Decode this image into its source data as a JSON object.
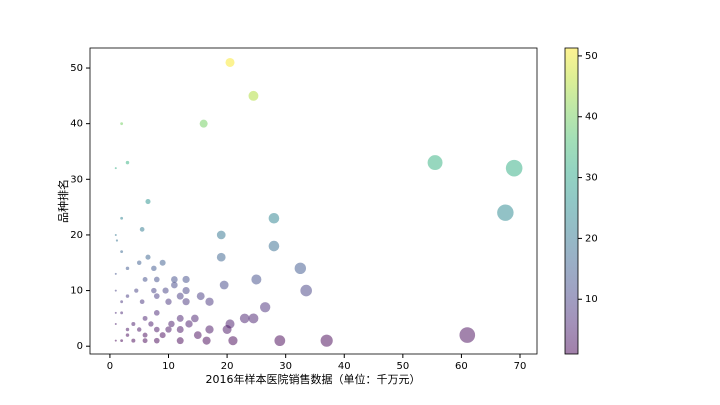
{
  "chart_data": {
    "type": "scatter",
    "xlabel": "2016年样本医院销售数据（单位：千万元）",
    "ylabel": "品种排名",
    "x": [
      20.5,
      24.5,
      16,
      2,
      3,
      55.5,
      69,
      1,
      6.5,
      67.5,
      28,
      2,
      5.5,
      19,
      1,
      1.2,
      28,
      2,
      19,
      6.5,
      5,
      9,
      7.5,
      32.5,
      3,
      25,
      11,
      13,
      8,
      6,
      19.5,
      11,
      33.5,
      7.5,
      9.5,
      13,
      4.5,
      1,
      15.5,
      12,
      8,
      3,
      26.5,
      10,
      13,
      5.5,
      17,
      2,
      23,
      24.5,
      12,
      14.5,
      6,
      8,
      20.5,
      10.5,
      13.5,
      7,
      4,
      17,
      20,
      10,
      12,
      8,
      5,
      3,
      61,
      15,
      9,
      6,
      3,
      37,
      29,
      21,
      16.5,
      12,
      8,
      6,
      4,
      2,
      1,
      1,
      1,
      2,
      1
    ],
    "y": [
      51,
      45,
      40,
      40,
      33,
      33,
      32,
      32,
      26,
      24,
      23,
      23,
      21,
      20,
      20,
      19,
      18,
      17,
      16,
      16,
      15,
      15,
      14,
      14,
      14,
      12,
      12,
      12,
      12,
      12,
      11,
      11,
      10,
      10,
      10,
      10,
      10,
      10,
      9,
      9,
      9,
      9,
      7,
      8,
      8,
      8,
      8,
      8,
      5,
      5,
      5,
      5,
      5,
      6,
      4,
      4,
      4,
      4,
      4,
      3,
      3,
      3,
      3,
      3,
      3,
      3,
      2,
      2,
      2,
      2,
      2,
      1,
      1,
      1,
      1,
      1,
      1,
      1,
      1,
      1,
      1,
      13,
      6,
      6,
      4
    ],
    "colormap": "viridis",
    "clim": [
      1,
      51.3
    ],
    "alpha": 0.5,
    "xlim": [
      -3.4,
      72.9
    ],
    "ylim": [
      -1.4,
      53.6
    ],
    "xticks": [
      0,
      10,
      20,
      30,
      40,
      50,
      60,
      70
    ],
    "yticks": [
      0,
      10,
      20,
      30,
      40,
      50
    ],
    "colorbar_ticks": [
      10,
      20,
      30,
      40,
      50
    ]
  }
}
